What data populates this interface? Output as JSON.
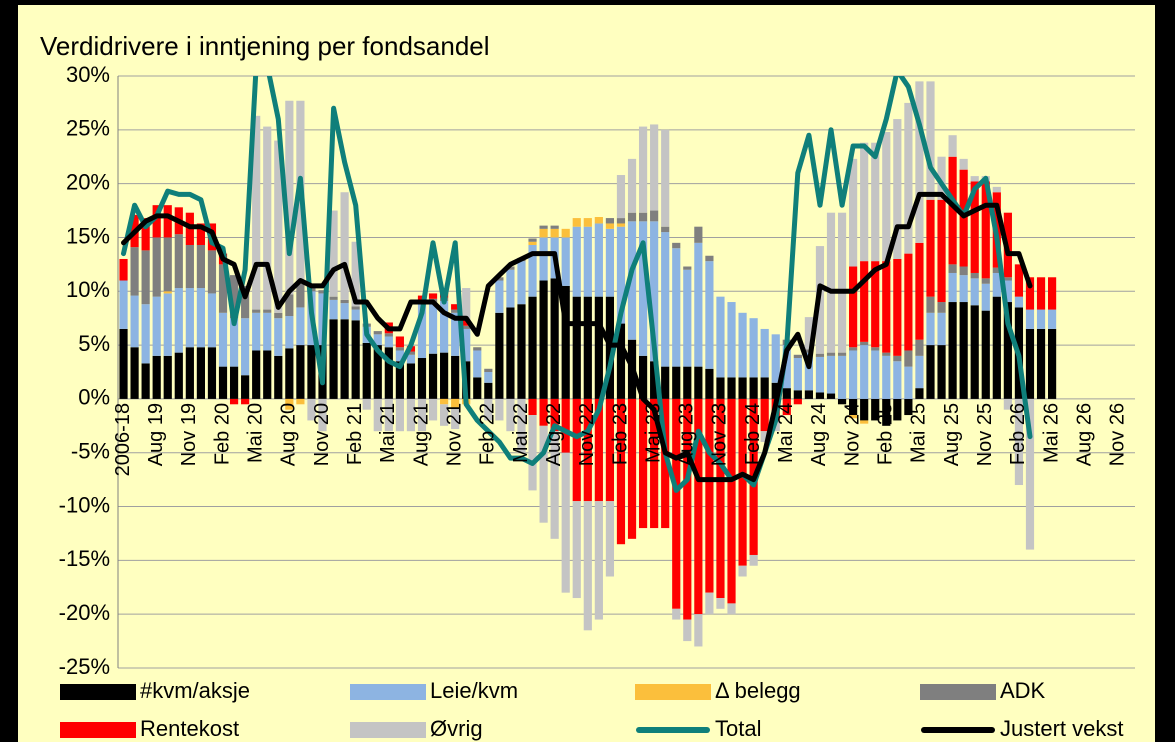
{
  "chart_data": {
    "type": "bar",
    "title": "Verdidrivere i inntjening per fondsandel",
    "categories": [
      "2006-18",
      null,
      null,
      "Aug 19",
      null,
      null,
      "Nov 19",
      null,
      null,
      "Feb 20",
      null,
      null,
      "Mai 20",
      null,
      null,
      "Aug 20",
      null,
      null,
      "Nov 20",
      null,
      null,
      "Feb 21",
      null,
      null,
      "Mai 21",
      null,
      null,
      "Aug 21",
      null,
      null,
      "Nov 21",
      null,
      null,
      "Feb 22",
      null,
      null,
      "Mai 22",
      null,
      null,
      "Aug 22",
      null,
      null,
      "Nov 22",
      null,
      null,
      "Feb 23",
      null,
      null,
      "Mai 23",
      null,
      null,
      "Aug 23",
      null,
      null,
      "Nov 23",
      null,
      null,
      "Feb 24",
      null,
      null,
      "Mai 24",
      null,
      null,
      "Aug 24",
      null,
      null,
      "Nov 24",
      null,
      null,
      "Feb 25",
      null,
      null,
      "Mai 25",
      null,
      null,
      "Aug 25",
      null,
      null,
      "Nov 25",
      null,
      null,
      "Feb 26",
      null,
      null,
      "Mai 26",
      null,
      null,
      "Aug 26",
      null,
      null,
      "Nov 26",
      null
    ],
    "ylim": [
      -25,
      30
    ],
    "yticks": [
      {
        "value": -25,
        "label": "-25%"
      },
      {
        "value": -20,
        "label": "-20%"
      },
      {
        "value": -15,
        "label": "-15%"
      },
      {
        "value": -10,
        "label": "-10%"
      },
      {
        "value": -5,
        "label": "-5%"
      },
      {
        "value": 0,
        "label": "0%"
      },
      {
        "value": 5,
        "label": "5%"
      },
      {
        "value": 10,
        "label": "10%"
      },
      {
        "value": 15,
        "label": "15%"
      },
      {
        "value": 20,
        "label": "20%"
      },
      {
        "value": 25,
        "label": "25%"
      },
      {
        "value": 30,
        "label": "30%"
      }
    ],
    "grid": true,
    "legend": "bottom",
    "series": [
      {
        "name": "#kvm/aksje",
        "type": "bar",
        "color": "#000000",
        "values": [
          6.5,
          4.8,
          3.3,
          4,
          4,
          4.3,
          4.8,
          4.8,
          4.8,
          3,
          3,
          2.2,
          4.5,
          4.5,
          4,
          4.7,
          5,
          5,
          5,
          7.4,
          7.4,
          7.3,
          5.2,
          5,
          4.8,
          3.5,
          3.3,
          3.8,
          4.2,
          4.3,
          4,
          3.5,
          2,
          1.5,
          8,
          8.5,
          8.8,
          9.5,
          11,
          11.2,
          10.5,
          9.5,
          9.5,
          9.5,
          9.5,
          7,
          5.5,
          4,
          3.5,
          3,
          3,
          3,
          3,
          2.8,
          2,
          2,
          2,
          2,
          2,
          1.5,
          1,
          0.8,
          0.8,
          0.6,
          0.5,
          -0.5,
          -1.5,
          -2,
          -2,
          -2.5,
          -2,
          -1.5,
          1,
          5,
          5,
          9,
          9,
          8.7,
          8.2,
          9.5,
          9,
          8.5,
          6.5,
          6.5,
          6.5,
          null,
          null,
          null,
          null,
          null,
          null,
          null
        ]
      },
      {
        "name": "Leie/kvm",
        "type": "bar",
        "color": "#8db4e2",
        "values": [
          4.5,
          4.8,
          5.5,
          5.5,
          5.8,
          6,
          5.5,
          5.5,
          5,
          5,
          4.5,
          5.3,
          3.5,
          3.5,
          3.5,
          3,
          3.5,
          5,
          4.8,
          1.8,
          1.5,
          1,
          1.5,
          1,
          1,
          1,
          0.8,
          5,
          4.8,
          4.8,
          4,
          3,
          2.5,
          1,
          3,
          3.5,
          4,
          4.8,
          4,
          3.8,
          4.5,
          6.5,
          6.5,
          6.8,
          6.3,
          9,
          11,
          12.5,
          13,
          12.5,
          11,
          9,
          11.5,
          10,
          7.5,
          7,
          6,
          5.5,
          4.5,
          4.5,
          4,
          3,
          3.5,
          3.3,
          3.5,
          4,
          4.5,
          5,
          4.5,
          4,
          3.5,
          3,
          3,
          3,
          3,
          2.7,
          2.5,
          2.5,
          2.5,
          2.2,
          2,
          1,
          1.8,
          1.8,
          1.8,
          null,
          null,
          null,
          null,
          null,
          null,
          null
        ]
      },
      {
        "name": "Δ belegg",
        "type": "bar",
        "color": "#fbbf3c",
        "values": [
          0,
          0,
          0,
          0,
          0.2,
          0,
          0,
          0,
          0,
          0,
          0,
          0,
          0,
          0,
          0,
          -1,
          -0.5,
          0,
          0,
          0,
          0,
          0,
          0,
          0,
          0,
          0,
          0,
          0,
          0,
          -0.5,
          -0.8,
          -0.5,
          0,
          0,
          0,
          0,
          0,
          0.3,
          0.8,
          0.8,
          0.8,
          0.8,
          0.8,
          0.6,
          0.5,
          0.3,
          0,
          0,
          0,
          0,
          0,
          0,
          0,
          0,
          0,
          0,
          0,
          0,
          0,
          0,
          0,
          0,
          0,
          0,
          0,
          0,
          -0.3,
          -0.3,
          0,
          0,
          0,
          0,
          0,
          0,
          0,
          0,
          0,
          0,
          0,
          0,
          0,
          0,
          0,
          0,
          0,
          null,
          null,
          null,
          null,
          null,
          null,
          null
        ]
      },
      {
        "name": "ADK",
        "type": "bar",
        "color": "#7f7f7f",
        "values": [
          0,
          4.5,
          5,
          5.5,
          5,
          5,
          4,
          4,
          4,
          4.5,
          4,
          3,
          0.3,
          0.3,
          0.5,
          2,
          2.2,
          0.5,
          0.3,
          0.3,
          0.3,
          0.3,
          0.3,
          0.3,
          0.3,
          0.3,
          0.3,
          0.3,
          0.3,
          0.3,
          0.3,
          0.3,
          0.3,
          0.3,
          0.3,
          0.3,
          0.3,
          0.3,
          0.3,
          0.3,
          0,
          0,
          0,
          0,
          0.5,
          0.5,
          0.8,
          0.8,
          1,
          0.5,
          0.5,
          0.3,
          1.5,
          0.5,
          0,
          0,
          0,
          0,
          0,
          0,
          0.5,
          0.3,
          0.3,
          0.3,
          0.3,
          0.3,
          0.3,
          0.3,
          0.3,
          0.3,
          0.5,
          1.5,
          1.5,
          1.5,
          1,
          0.8,
          0.8,
          0.5,
          0.5,
          0.5,
          0.3,
          0,
          0,
          0,
          0,
          null,
          null,
          null,
          null,
          null,
          null,
          null
        ]
      },
      {
        "name": "Rentekost",
        "type": "bar",
        "color": "#ff0000",
        "values": [
          2,
          3,
          3,
          3,
          3,
          2.5,
          3,
          2,
          2.5,
          1,
          -0.5,
          -0.5,
          0,
          0,
          0,
          0,
          0,
          0,
          0,
          0,
          0,
          0,
          0,
          0,
          1,
          1,
          0.5,
          0.5,
          0.5,
          0.5,
          0.5,
          0.5,
          0,
          0,
          0,
          0,
          0,
          -1.5,
          -2.5,
          -3,
          -5,
          -9.5,
          -9.5,
          -9.5,
          -9.5,
          -13.5,
          -13,
          -12,
          -12,
          -12,
          -19.5,
          -20.5,
          -20,
          -18,
          -18.5,
          -19,
          -15.5,
          -14.5,
          -3,
          -2,
          -1.5,
          -0.5,
          0,
          0,
          0,
          0,
          7.5,
          7.5,
          8,
          8.5,
          9,
          9,
          9,
          9,
          9.5,
          10,
          9,
          8.5,
          9,
          7,
          6,
          3,
          3,
          3,
          3,
          null,
          null,
          null,
          null,
          null,
          null,
          null
        ]
      },
      {
        "name": "Øvrig",
        "type": "bar",
        "color": "#c4c4c4",
        "values": [
          0,
          0,
          0,
          0,
          0,
          0,
          0,
          0,
          0,
          0,
          0,
          0,
          18,
          17,
          16,
          18,
          17,
          -2,
          -3,
          8,
          10,
          6,
          -1,
          -3,
          -3,
          -3,
          -3,
          -3,
          -2,
          -2,
          -2,
          3,
          0,
          -2,
          -2,
          -3,
          -5,
          -7,
          -9,
          -10,
          -13,
          -9,
          -12,
          -11,
          -7,
          4,
          5,
          8,
          8,
          9,
          -1,
          -2,
          -3,
          -2,
          -1,
          -1,
          -1,
          -1,
          -1,
          -1,
          0,
          0,
          3,
          10,
          13,
          13,
          10,
          11,
          11,
          12,
          13,
          14,
          15,
          11,
          4,
          2,
          1,
          0.5,
          0.5,
          0.5,
          -1,
          -8,
          -14,
          0,
          0,
          null,
          null,
          null,
          null,
          null,
          null,
          null
        ]
      },
      {
        "name": "Total",
        "type": "line",
        "color": "#0f7f7a",
        "values": [
          13.5,
          18,
          16,
          17,
          19.3,
          19,
          19,
          18.5,
          14.5,
          14,
          7,
          12,
          31,
          31,
          26,
          13.5,
          20.5,
          8,
          1.5,
          27,
          22,
          18,
          6,
          4.5,
          3.5,
          3,
          5,
          8,
          14.5,
          9,
          14.5,
          -0.5,
          -2,
          -3,
          -4,
          -5.5,
          -5.5,
          -6,
          -5,
          -2.5,
          -3,
          -3.5,
          -3,
          -1,
          3,
          8,
          12,
          14.5,
          5,
          -5,
          -8.5,
          -7.5,
          -3,
          -5,
          -6,
          -7.5,
          -7,
          -8,
          -5,
          -2,
          5,
          21,
          24.5,
          18,
          25,
          18,
          23.5,
          23.5,
          22.5,
          26,
          30.5,
          29,
          25.5,
          21.5,
          20,
          18.5,
          17,
          19.5,
          20.5,
          15,
          7,
          4,
          -3.5,
          null,
          null,
          null,
          null,
          null,
          null,
          null,
          null,
          null
        ]
      },
      {
        "name": "Justert vekst",
        "type": "line",
        "color": "#000000",
        "values": [
          14.5,
          15.5,
          16.5,
          17,
          17,
          16.5,
          16,
          16,
          15.5,
          13,
          12.5,
          9.5,
          12.5,
          12.5,
          8.5,
          10,
          11,
          10.5,
          10.5,
          12,
          12.5,
          9,
          9,
          7.5,
          6.5,
          6.5,
          9,
          9,
          9,
          8,
          7.5,
          7.5,
          6,
          10.5,
          11.5,
          12.5,
          13,
          13.5,
          13.5,
          13.5,
          7,
          7,
          7,
          7,
          5,
          5,
          3,
          0,
          -1,
          -5,
          -5.5,
          -5,
          -7.5,
          -7.5,
          -7.5,
          -7.5,
          -7,
          -7.5,
          -5,
          -0.5,
          4.5,
          6,
          3,
          10.5,
          10,
          10,
          10,
          11,
          12,
          12.5,
          16,
          16,
          19,
          19,
          19,
          18,
          17,
          17.5,
          18,
          18,
          13.5,
          13.5,
          10.5,
          null,
          null,
          null,
          null,
          null,
          null,
          null,
          null,
          null
        ]
      }
    ]
  }
}
